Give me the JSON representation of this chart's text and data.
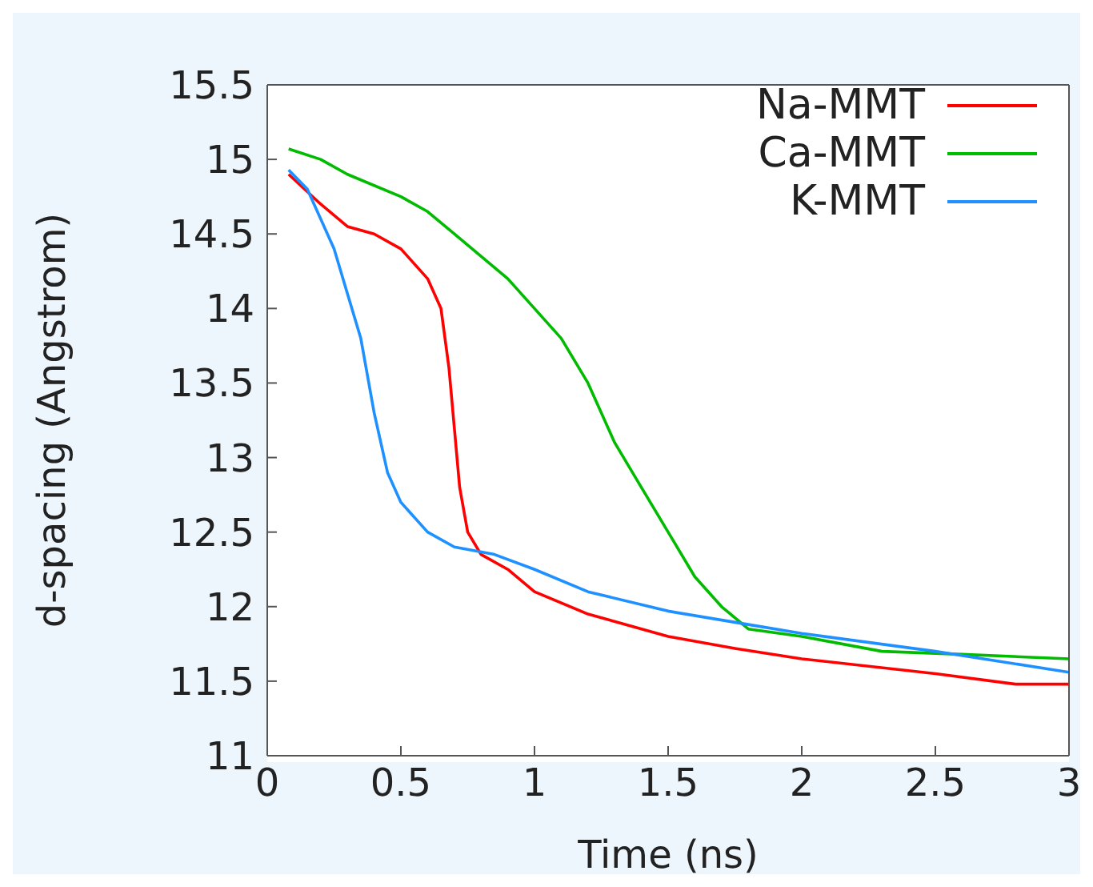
{
  "chart_data": {
    "type": "line",
    "xlabel": "Time (ns)",
    "ylabel": "d-spacing (Angstrom)",
    "xlim": [
      0,
      3
    ],
    "xticks": [
      0,
      0.5,
      1,
      1.5,
      2,
      2.5,
      3
    ],
    "ylim": [
      11,
      15.5
    ],
    "yticks": [
      11,
      11.5,
      12,
      12.5,
      13,
      13.5,
      14,
      14.5,
      15,
      15.5
    ],
    "grid": false,
    "legend": "top right",
    "marker": "none",
    "line_style": "solid",
    "series": [
      {
        "name": "Na-MMT",
        "color": "#ff0000",
        "x": [
          0.08,
          0.2,
          0.3,
          0.4,
          0.5,
          0.6,
          0.65,
          0.68,
          0.7,
          0.72,
          0.75,
          0.8,
          0.9,
          1.0,
          1.2,
          1.5,
          1.75,
          2.0,
          2.5,
          2.8,
          3.0
        ],
        "values": [
          14.9,
          14.7,
          14.55,
          14.5,
          14.4,
          14.2,
          14.0,
          13.6,
          13.2,
          12.8,
          12.5,
          12.35,
          12.25,
          12.1,
          11.95,
          11.8,
          11.72,
          11.65,
          11.55,
          11.48,
          11.48
        ]
      },
      {
        "name": "Ca-MMT",
        "color": "#00bb00",
        "x": [
          0.08,
          0.2,
          0.3,
          0.5,
          0.6,
          0.7,
          0.8,
          0.9,
          1.0,
          1.1,
          1.2,
          1.3,
          1.4,
          1.5,
          1.6,
          1.7,
          1.8,
          2.0,
          2.3,
          2.6,
          3.0
        ],
        "values": [
          15.07,
          15.0,
          14.9,
          14.75,
          14.65,
          14.5,
          14.35,
          14.2,
          14.0,
          13.8,
          13.5,
          13.1,
          12.8,
          12.5,
          12.2,
          12.0,
          11.85,
          11.8,
          11.7,
          11.68,
          11.65
        ]
      },
      {
        "name": "K-MMT",
        "color": "#1e90ff",
        "x": [
          0.08,
          0.15,
          0.2,
          0.25,
          0.3,
          0.35,
          0.4,
          0.45,
          0.5,
          0.6,
          0.7,
          0.85,
          1.0,
          1.2,
          1.5,
          1.8,
          2.0,
          2.5,
          3.0
        ],
        "values": [
          14.93,
          14.8,
          14.6,
          14.4,
          14.1,
          13.8,
          13.3,
          12.9,
          12.7,
          12.5,
          12.4,
          12.35,
          12.25,
          12.1,
          11.97,
          11.88,
          11.82,
          11.7,
          11.56
        ]
      }
    ]
  }
}
